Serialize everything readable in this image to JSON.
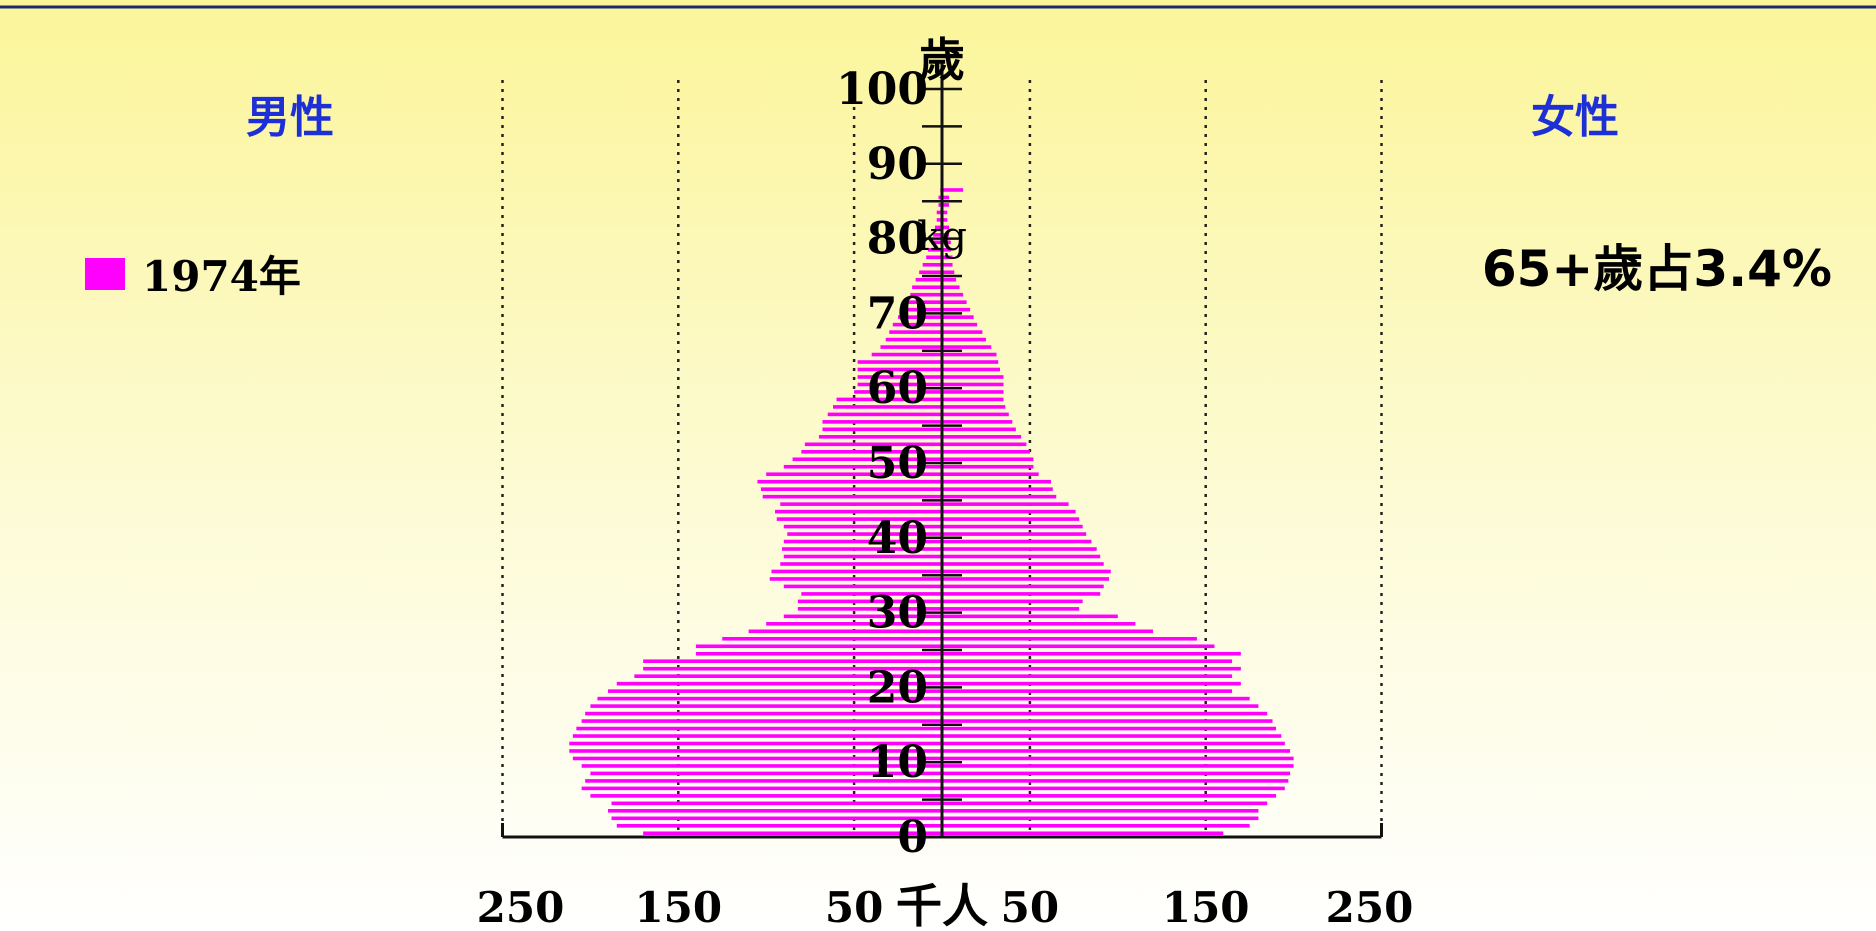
{
  "chart_data": {
    "type": "bar",
    "orientation": "horizontal-population-pyramid",
    "year_legend": "1974年",
    "male_label": "男性",
    "female_label": "女性",
    "age_axis_unit": "歲",
    "x_axis_unit": "千人",
    "annotation": "65+歲占3.4%",
    "stray_label": "kg",
    "age_ticks": [
      0,
      10,
      20,
      30,
      40,
      50,
      60,
      70,
      80,
      90,
      100
    ],
    "x_tick_labels": [
      "250",
      "150",
      "50",
      "50",
      "150",
      "250"
    ],
    "x_range": [
      -250,
      250
    ],
    "age_range": [
      0,
      100
    ],
    "bar_color": "#ff00ff",
    "ages": [
      0,
      1,
      2,
      3,
      4,
      5,
      6,
      7,
      8,
      9,
      10,
      11,
      12,
      13,
      14,
      15,
      16,
      17,
      18,
      19,
      20,
      21,
      22,
      23,
      24,
      25,
      26,
      27,
      28,
      29,
      30,
      31,
      32,
      33,
      34,
      35,
      36,
      37,
      38,
      39,
      40,
      41,
      42,
      43,
      44,
      45,
      46,
      47,
      48,
      49,
      50,
      51,
      52,
      53,
      54,
      55,
      56,
      57,
      58,
      59,
      60,
      61,
      62,
      63,
      64,
      65,
      66,
      67,
      68,
      69,
      70,
      71,
      72,
      73,
      74,
      75,
      76,
      77,
      78,
      79,
      80,
      81,
      82,
      83,
      84,
      85,
      86
    ],
    "series": [
      {
        "name": "男性",
        "values": [
          170,
          185,
          188,
          190,
          188,
          200,
          205,
          203,
          200,
          205,
          210,
          212,
          212,
          210,
          208,
          205,
          203,
          200,
          196,
          190,
          185,
          175,
          170,
          170,
          140,
          140,
          125,
          110,
          100,
          90,
          82,
          82,
          80,
          90,
          98,
          97,
          92,
          90,
          91,
          90,
          88,
          90,
          94,
          95,
          92,
          102,
          103,
          105,
          100,
          90,
          85,
          80,
          78,
          70,
          68,
          68,
          65,
          62,
          60,
          50,
          48,
          48,
          48,
          48,
          40,
          35,
          32,
          30,
          28,
          25,
          22,
          20,
          18,
          17,
          15,
          13,
          11,
          9,
          8,
          6,
          5,
          4,
          3,
          3,
          2,
          2,
          1
        ]
      },
      {
        "name": "女性",
        "values": [
          160,
          175,
          180,
          180,
          185,
          190,
          195,
          197,
          198,
          200,
          200,
          198,
          195,
          193,
          190,
          188,
          185,
          180,
          175,
          165,
          170,
          165,
          170,
          165,
          170,
          155,
          145,
          120,
          110,
          100,
          78,
          80,
          90,
          92,
          95,
          96,
          92,
          90,
          88,
          85,
          82,
          80,
          78,
          76,
          72,
          65,
          63,
          62,
          55,
          52,
          52,
          50,
          48,
          45,
          42,
          40,
          38,
          36,
          35,
          35,
          35,
          35,
          33,
          32,
          31,
          28,
          25,
          23,
          20,
          18,
          16,
          14,
          12,
          10,
          8,
          7,
          6,
          6,
          5,
          5,
          4,
          4,
          3,
          3,
          4,
          4,
          12
        ]
      }
    ]
  }
}
